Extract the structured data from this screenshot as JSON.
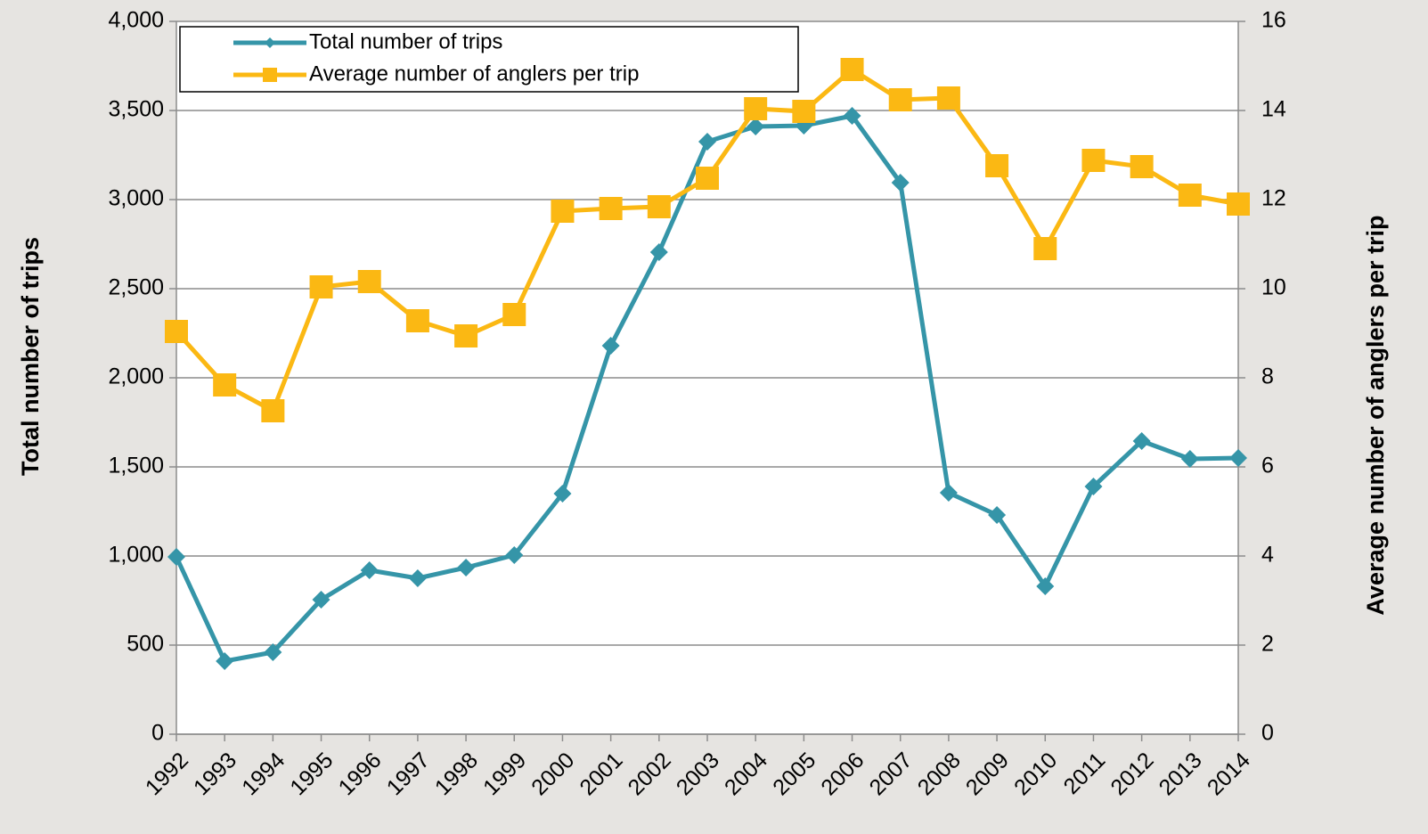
{
  "chart_data": {
    "type": "line",
    "categories": [
      "1992",
      "1993",
      "1994",
      "1995",
      "1996",
      "1997",
      "1998",
      "1999",
      "2000",
      "2001",
      "2002",
      "2003",
      "2004",
      "2005",
      "2006",
      "2007",
      "2008",
      "2009",
      "2010",
      "2011",
      "2012",
      "2013",
      "2014"
    ],
    "series": [
      {
        "name": "Total number of trips",
        "color": "#3595a8",
        "marker": "diamond",
        "values": [
          995,
          410,
          460,
          755,
          920,
          875,
          935,
          1005,
          1350,
          2180,
          2705,
          3325,
          3410,
          3415,
          3470,
          3095,
          1355,
          1230,
          830,
          1390,
          1645,
          1545,
          1550
        ]
      },
      {
        "name": "Average number of anglers per trip",
        "color": "#fbb813",
        "marker": "square",
        "axis": "y2",
        "values": [
          9.04,
          7.84,
          7.26,
          10.04,
          10.16,
          9.28,
          8.94,
          9.42,
          11.74,
          11.8,
          11.84,
          12.48,
          14.04,
          13.98,
          14.92,
          14.24,
          14.28,
          12.76,
          10.9,
          12.88,
          12.74,
          12.1,
          11.9
        ]
      }
    ],
    "y_label": "Total number of trips",
    "y2_label": "Average number of anglers per trip",
    "ylim": [
      0,
      4000
    ],
    "yticks": [
      0,
      500,
      {
        "value": 1000,
        "label": "1,000"
      },
      {
        "value": 1500,
        "label": "1,500"
      },
      {
        "value": 2000,
        "label": "2,000"
      },
      {
        "value": 2500,
        "label": "2,500"
      },
      {
        "value": 3000,
        "label": "3,000"
      },
      {
        "value": 3500,
        "label": "3,500"
      },
      {
        "value": 4000,
        "label": "4,000"
      }
    ],
    "y2lim": [
      0,
      16
    ],
    "y2ticks": [
      0,
      2,
      4,
      6,
      8,
      10,
      12,
      14,
      16
    ],
    "grid": true,
    "legend": "top-left"
  }
}
